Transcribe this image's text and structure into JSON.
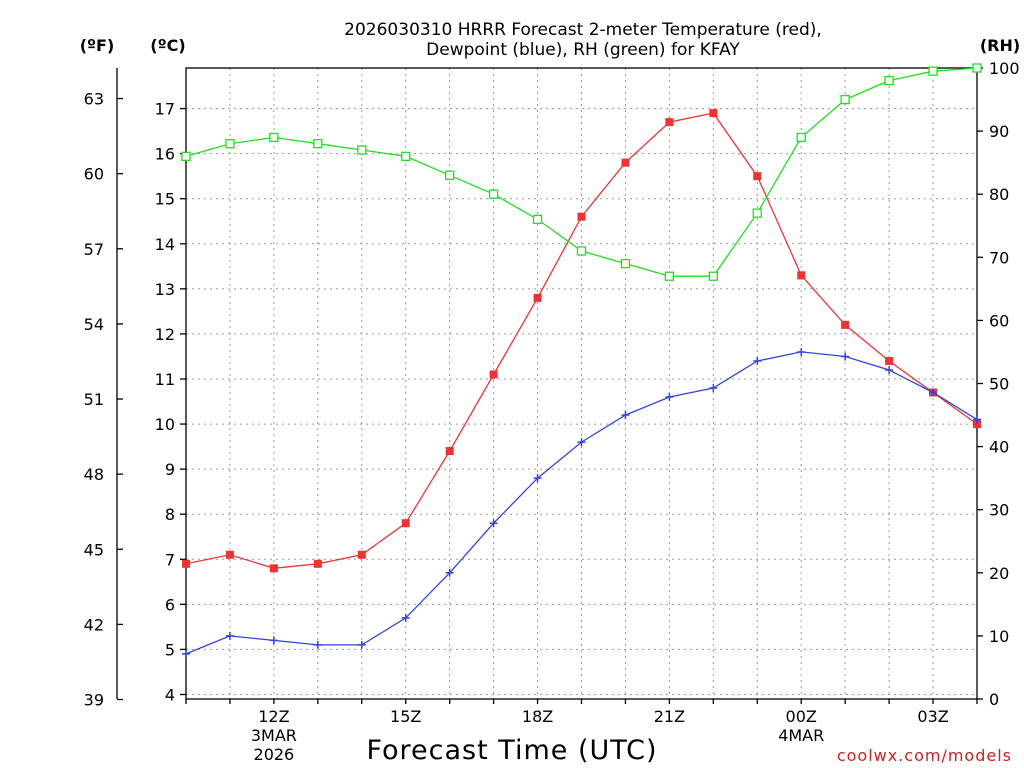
{
  "chart_data": {
    "type": "line",
    "title_lines": [
      "2026030310 HRRR Forecast 2-meter Temperature (red),",
      "Dewpoint (blue), RH (green) for KFAY"
    ],
    "xlabel": "Forecast Time (UTC)",
    "credit": "coolwx.com/models",
    "units": {
      "fahrenheit": "(ºF)",
      "celsius": "(ºC)",
      "rh": "(RH)"
    },
    "x_hours": [
      10,
      11,
      12,
      13,
      14,
      15,
      16,
      17,
      18,
      19,
      20,
      21,
      22,
      23,
      24,
      25,
      26,
      27,
      28
    ],
    "x_range": [
      10,
      28
    ],
    "x_ticks": [
      {
        "hour": 12,
        "lines": [
          "12Z",
          "3MAR",
          "2026"
        ]
      },
      {
        "hour": 15,
        "lines": [
          "15Z"
        ]
      },
      {
        "hour": 18,
        "lines": [
          "18Z"
        ]
      },
      {
        "hour": 21,
        "lines": [
          "21Z"
        ]
      },
      {
        "hour": 24,
        "lines": [
          "00Z",
          "4MAR"
        ]
      },
      {
        "hour": 27,
        "lines": [
          "03Z"
        ]
      }
    ],
    "celsius_range": [
      3.9,
      17.9
    ],
    "celsius_ticks": [
      "4",
      "5",
      "6",
      "7",
      "8",
      "9",
      "10",
      "11",
      "12",
      "13",
      "14",
      "15",
      "16",
      "17"
    ],
    "fahrenheit_ticks": [
      "39",
      "42",
      "45",
      "48",
      "51",
      "54",
      "57",
      "60",
      "63"
    ],
    "rh_range": [
      0,
      100
    ],
    "rh_ticks": [
      "0",
      "10",
      "20",
      "30",
      "40",
      "50",
      "60",
      "70",
      "80",
      "90",
      "100"
    ],
    "series": [
      {
        "name": "Temperature",
        "unit": "C",
        "color": "#ee3333",
        "marker": "filled-square",
        "values": [
          6.9,
          7.1,
          6.8,
          6.9,
          7.1,
          7.8,
          9.4,
          11.1,
          12.8,
          14.6,
          15.8,
          16.7,
          16.9,
          15.5,
          13.3,
          12.2,
          11.4,
          10.7,
          10.0
        ]
      },
      {
        "name": "Dewpoint",
        "unit": "C",
        "color": "#3344dd",
        "marker": "plus",
        "values": [
          4.9,
          5.3,
          5.2,
          5.1,
          5.1,
          5.7,
          6.7,
          7.8,
          8.8,
          9.6,
          10.2,
          10.6,
          10.8,
          11.4,
          11.6,
          11.5,
          11.2,
          10.7,
          10.1
        ]
      },
      {
        "name": "RH",
        "unit": "%",
        "color": "#22dd22",
        "marker": "open-square",
        "values": [
          86,
          88,
          89,
          88,
          87,
          86,
          83,
          80,
          76,
          71,
          69,
          67,
          67,
          77,
          89,
          95,
          98,
          99.5,
          100
        ]
      }
    ]
  }
}
